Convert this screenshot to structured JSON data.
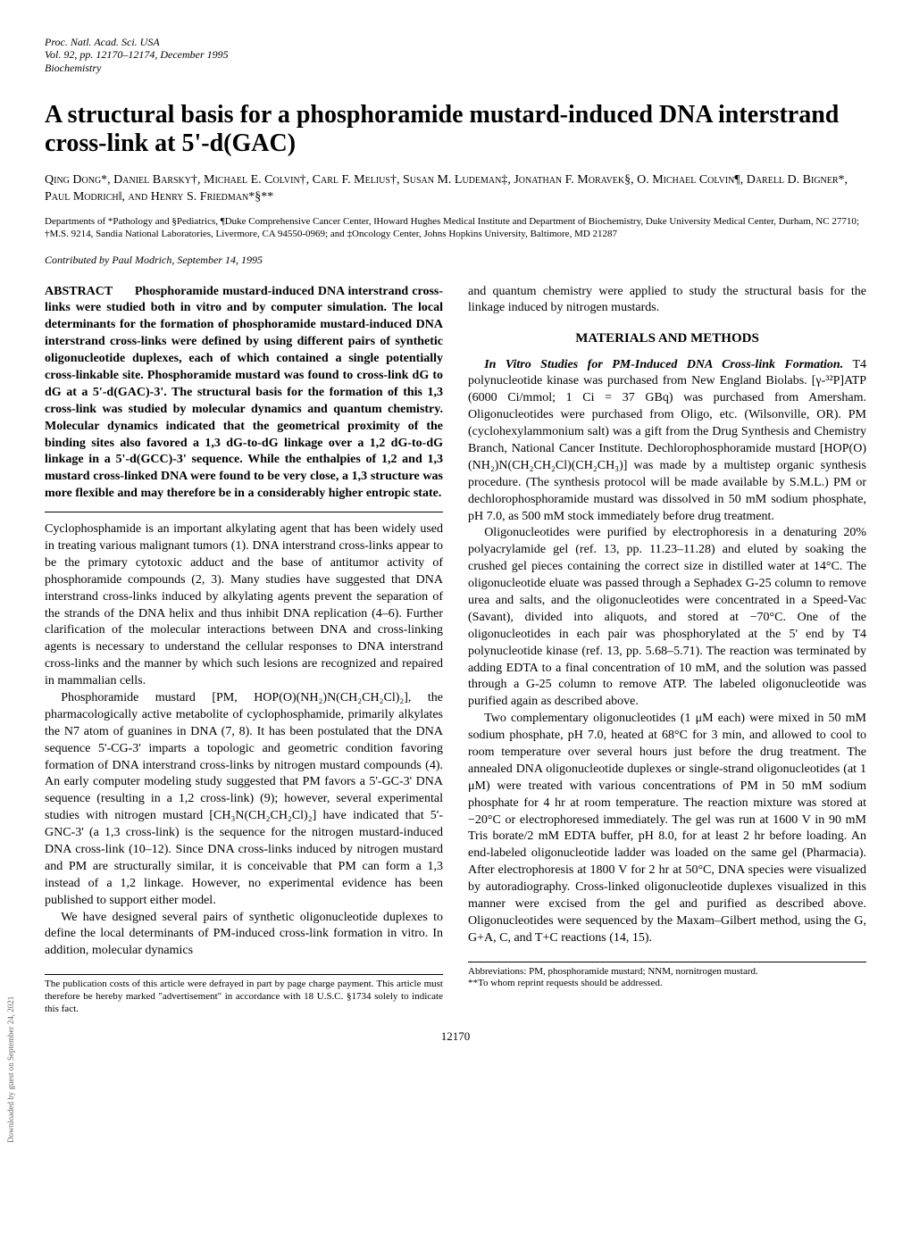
{
  "header": {
    "line1": "Proc. Natl. Acad. Sci. USA",
    "line2": "Vol. 92, pp. 12170–12174, December 1995",
    "line3": "Biochemistry"
  },
  "title": "A structural basis for a phosphoramide mustard-induced DNA interstrand cross-link at 5'-d(GAC)",
  "authors": "Qing Dong*, Daniel Barsky†, Michael E. Colvin†, Carl F. Melius†, Susan M. Ludeman‡, Jonathan F. Moravek§, O. Michael Colvin¶, Darell D. Bigner*, Paul Modrich‖, and Henry S. Friedman*§**",
  "affiliations": "Departments of *Pathology and §Pediatrics, ¶Duke Comprehensive Cancer Center, ‖Howard Hughes Medical Institute and Department of Biochemistry, Duke University Medical Center, Durham, NC 27710; †M.S. 9214, Sandia National Laboratories, Livermore, CA 94550-0969; and ‡Oncology Center, Johns Hopkins University, Baltimore, MD 21287",
  "contributed": "Contributed by Paul Modrich, September 14, 1995",
  "abstract": {
    "label": "ABSTRACT",
    "text": "Phosphoramide mustard-induced DNA interstrand cross-links were studied both in vitro and by computer simulation. The local determinants for the formation of phosphoramide mustard-induced DNA interstrand cross-links were defined by using different pairs of synthetic oligonucleotide duplexes, each of which contained a single potentially cross-linkable site. Phosphoramide mustard was found to cross-link dG to dG at a 5'-d(GAC)-3'. The structural basis for the formation of this 1,3 cross-link was studied by molecular dynamics and quantum chemistry. Molecular dynamics indicated that the geometrical proximity of the binding sites also favored a 1,3 dG-to-dG linkage over a 1,2 dG-to-dG linkage in a 5'-d(GCC)-3' sequence. While the enthalpies of 1,2 and 1,3 mustard cross-linked DNA were found to be very close, a 1,3 structure was more flexible and may therefore be in a considerably higher entropic state."
  },
  "left_column": {
    "p1": "Cyclophosphamide is an important alkylating agent that has been widely used in treating various malignant tumors (1). DNA interstrand cross-links appear to be the primary cytotoxic adduct and the base of antitumor activity of phosphoramide compounds (2, 3). Many studies have suggested that DNA interstrand cross-links induced by alkylating agents prevent the separation of the strands of the DNA helix and thus inhibit DNA replication (4–6). Further clarification of the molecular interactions between DNA and cross-linking agents is necessary to understand the cellular responses to DNA interstrand cross-links and the manner by which such lesions are recognized and repaired in mammalian cells.",
    "p2": "Phosphoramide mustard [PM, HOP(O)(NH₂)N(CH₂CH₂Cl)₂], the pharmacologically active metabolite of cyclophosphamide, primarily alkylates the N7 atom of guanines in DNA (7, 8). It has been postulated that the DNA sequence 5'-CG-3' imparts a topologic and geometric condition favoring formation of DNA interstrand cross-links by nitrogen mustard compounds (4). An early computer modeling study suggested that PM favors a 5'-GC-3' DNA sequence (resulting in a 1,2 cross-link) (9); however, several experimental studies with nitrogen mustard [CH₃N(CH₂CH₂Cl)₂] have indicated that 5'-GNC-3' (a 1,3 cross-link) is the sequence for the nitrogen mustard-induced DNA cross-link (10–12). Since DNA cross-links induced by nitrogen mustard and PM are structurally similar, it is conceivable that PM can form a 1,3 instead of a 1,2 linkage. However, no experimental evidence has been published to support either model.",
    "p3": "We have designed several pairs of synthetic oligonucleotide duplexes to define the local determinants of PM-induced cross-link formation in vitro. In addition, molecular dynamics"
  },
  "right_column": {
    "p1": "and quantum chemistry were applied to study the structural basis for the linkage induced by nitrogen mustards.",
    "section_title": "MATERIALS AND METHODS",
    "p2_lead": "In Vitro Studies for PM-Induced DNA Cross-link Formation.",
    "p2": "T4 polynucleotide kinase was purchased from New England Biolabs. [γ-³²P]ATP (6000 Ci/mmol; 1 Ci = 37 GBq) was purchased from Amersham. Oligonucleotides were purchased from Oligo, etc. (Wilsonville, OR). PM (cyclohexylammonium salt) was a gift from the Drug Synthesis and Chemistry Branch, National Cancer Institute. Dechlorophosphoramide mustard [HOP(O)(NH₂)N(CH₂CH₂Cl)(CH₂CH₃)] was made by a multistep organic synthesis procedure. (The synthesis protocol will be made available by S.M.L.) PM or dechlorophosphoramide mustard was dissolved in 50 mM sodium phosphate, pH 7.0, as 500 mM stock immediately before drug treatment.",
    "p3": "Oligonucleotides were purified by electrophoresis in a denaturing 20% polyacrylamide gel (ref. 13, pp. 11.23–11.28) and eluted by soaking the crushed gel pieces containing the correct size in distilled water at 14°C. The oligonucleotide eluate was passed through a Sephadex G-25 column to remove urea and salts, and the oligonucleotides were concentrated in a Speed-Vac (Savant), divided into aliquots, and stored at −70°C. One of the oligonucleotides in each pair was phosphorylated at the 5' end by T4 polynucleotide kinase (ref. 13, pp. 5.68–5.71). The reaction was terminated by adding EDTA to a final concentration of 10 mM, and the solution was passed through a G-25 column to remove ATP. The labeled oligonucleotide was purified again as described above.",
    "p4": "Two complementary oligonucleotides (1 μM each) were mixed in 50 mM sodium phosphate, pH 7.0, heated at 68°C for 3 min, and allowed to cool to room temperature over several hours just before the drug treatment. The annealed DNA oligonucleotide duplexes or single-strand oligonucleotides (at 1 μM) were treated with various concentrations of PM in 50 mM sodium phosphate for 4 hr at room temperature. The reaction mixture was stored at −20°C or electrophoresed immediately. The gel was run at 1600 V in 90 mM Tris borate/2 mM EDTA buffer, pH 8.0, for at least 2 hr before loading. An end-labeled oligonucleotide ladder was loaded on the same gel (Pharmacia). After electrophoresis at 1800 V for 2 hr at 50°C, DNA species were visualized by autoradiography. Cross-linked oligonucleotide duplexes visualized in this manner were excised from the gel and purified as described above. Oligonucleotides were sequenced by the Maxam–Gilbert method, using the G, G+A, C, and T+C reactions (14, 15)."
  },
  "footer_left": "The publication costs of this article were defrayed in part by page charge payment. This article must therefore be hereby marked \"advertisement\" in accordance with 18 U.S.C. §1734 solely to indicate this fact.",
  "footer_right_line1": "Abbreviations: PM, phosphoramide mustard; NNM, nornitrogen mustard.",
  "footer_right_line2": "**To whom reprint requests should be addressed.",
  "page_number": "12170",
  "side_note": "Downloaded by guest on September 24, 2021"
}
